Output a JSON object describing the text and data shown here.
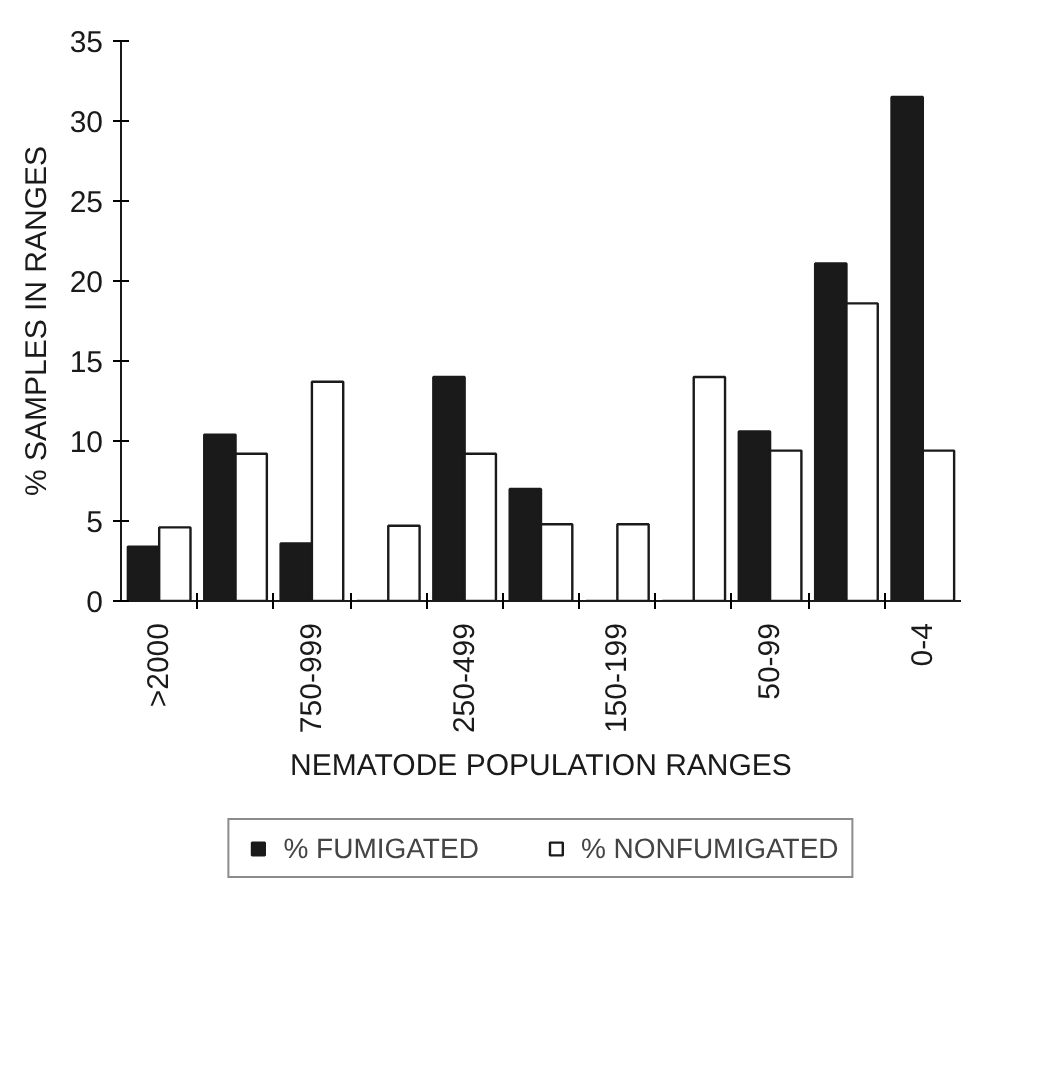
{
  "chart_data": {
    "type": "bar",
    "xlabel": "NEMATODE POPULATION RANGES",
    "ylabel": "% SAMPLES IN RANGES",
    "categories": [
      ">2000",
      null,
      "750-999",
      null,
      "250-499",
      null,
      "150-199",
      null,
      "50-99",
      null,
      "0-4"
    ],
    "series": [
      {
        "name": "% FUMIGATED",
        "color": "#1a1a1a",
        "values": [
          3.4,
          10.4,
          3.6,
          0,
          14.0,
          7.0,
          0,
          0,
          10.6,
          21.1,
          31.5
        ]
      },
      {
        "name": "% NONFUMIGATED",
        "color": "#ffffff",
        "values": [
          4.6,
          9.2,
          13.7,
          4.7,
          9.2,
          4.8,
          4.8,
          14.0,
          9.4,
          18.6,
          9.4
        ]
      }
    ],
    "ylim": [
      0,
      35
    ],
    "yticks": [
      0,
      5,
      10,
      15,
      20,
      25,
      30,
      35
    ],
    "grid": false,
    "legend": "bottom"
  }
}
